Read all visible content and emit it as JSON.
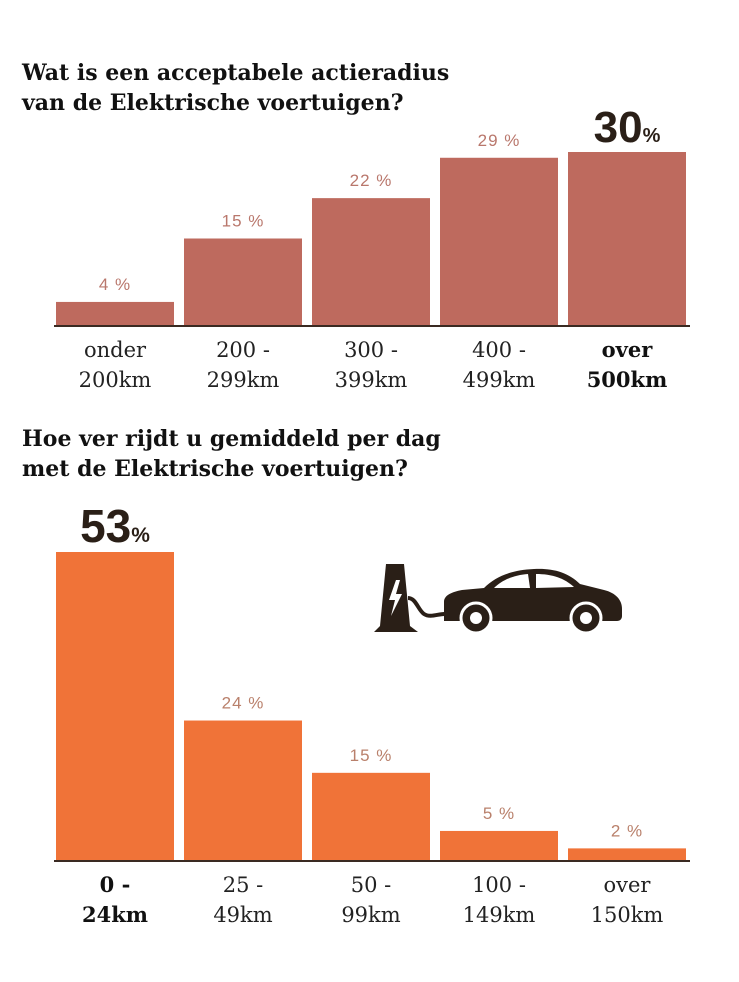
{
  "colors": {
    "chart1_bar": "#be6a5e",
    "chart1_label": "#b9776c",
    "chart2_bar": "#f07338",
    "chart2_label": "#b9806b",
    "dark": "#2a1f17"
  },
  "chart_data": [
    {
      "type": "bar",
      "title": "Wat is een acceptabele actieradius van de Elektrische voertuigen?",
      "title_lines": [
        "Wat is een acceptabele actieradius",
        "van de Elektrische voertuigen?"
      ],
      "categories": [
        "onder 200km",
        "200 - 299km",
        "300 - 399km",
        "400 - 499km",
        "over 500km"
      ],
      "category_lines": [
        [
          "onder",
          "200km"
        ],
        [
          "200 -",
          "299km"
        ],
        [
          "300 -",
          "399km"
        ],
        [
          "400 -",
          "499km"
        ],
        [
          "over",
          "500km"
        ]
      ],
      "values": [
        4,
        15,
        22,
        29,
        30
      ],
      "value_labels": [
        "4 %",
        "15 %",
        "22 %",
        "29 %",
        "30"
      ],
      "highlight_index": 4,
      "highlight_suffix": "%",
      "xlabel": "",
      "ylabel": "",
      "ylim": [
        0,
        30
      ],
      "grid": false,
      "legend": "none"
    },
    {
      "type": "bar",
      "title": "Hoe ver rijdt u gemiddeld per dag met de Elektrische voertuigen?",
      "title_lines": [
        "Hoe ver rijdt u gemiddeld per dag",
        "met de Elektrische voertuigen?"
      ],
      "categories": [
        "0 - 24km",
        "25 - 49km",
        "50 - 99km",
        "100 - 149km",
        "over 150km"
      ],
      "category_lines": [
        [
          "0 -",
          "24km"
        ],
        [
          "25 -",
          "49km"
        ],
        [
          "50 -",
          "99km"
        ],
        [
          "100 -",
          "149km"
        ],
        [
          "over",
          "150km"
        ]
      ],
      "values": [
        53,
        24,
        15,
        5,
        2
      ],
      "value_labels": [
        "53",
        "24 %",
        "15 %",
        "5 %",
        "2 %"
      ],
      "highlight_index": 0,
      "highlight_suffix": "%",
      "xlabel": "",
      "ylabel": "",
      "ylim": [
        0,
        53
      ],
      "grid": false,
      "legend": "none"
    }
  ],
  "icons": {
    "charger": "ev-charger-icon",
    "car": "car-icon"
  }
}
